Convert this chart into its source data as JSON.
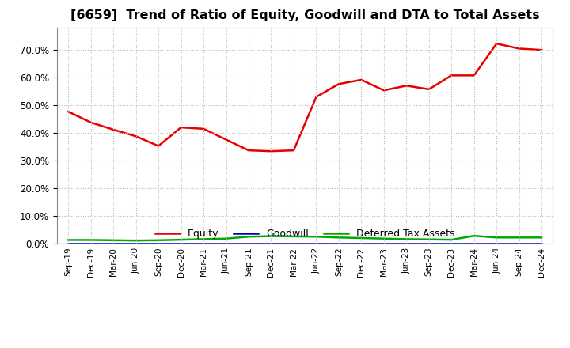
{
  "title": "[6659]  Trend of Ratio of Equity, Goodwill and DTA to Total Assets",
  "x_labels": [
    "Sep-19",
    "Dec-19",
    "Mar-20",
    "Jun-20",
    "Sep-20",
    "Dec-20",
    "Mar-21",
    "Jun-21",
    "Sep-21",
    "Dec-21",
    "Mar-22",
    "Jun-22",
    "Sep-22",
    "Dec-22",
    "Mar-23",
    "Jun-23",
    "Sep-23",
    "Dec-23",
    "Mar-24",
    "Jun-24",
    "Sep-24",
    "Dec-24"
  ],
  "equity": [
    0.477,
    0.438,
    0.412,
    0.388,
    0.353,
    0.42,
    0.415,
    0.376,
    0.337,
    0.334,
    0.337,
    0.53,
    0.577,
    0.592,
    0.554,
    0.571,
    0.558,
    0.608,
    0.608,
    0.723,
    0.705,
    0.7
  ],
  "goodwill": [
    0.0,
    0.0,
    0.0,
    0.0,
    0.0,
    0.0,
    0.0,
    0.0,
    0.0,
    0.0,
    0.0,
    0.0,
    0.0,
    0.0,
    0.0,
    0.0,
    0.0,
    0.0,
    0.0,
    0.0,
    0.0,
    0.0
  ],
  "dta": [
    0.013,
    0.013,
    0.012,
    0.011,
    0.012,
    0.014,
    0.016,
    0.018,
    0.025,
    0.027,
    0.026,
    0.025,
    0.022,
    0.02,
    0.018,
    0.016,
    0.015,
    0.014,
    0.028,
    0.022,
    0.022,
    0.022
  ],
  "equity_color": "#e80000",
  "goodwill_color": "#0000cc",
  "dta_color": "#00aa00",
  "background_color": "#ffffff",
  "grid_color": "#bbbbbb",
  "ylim": [
    0.0,
    0.78
  ],
  "yticks": [
    0.0,
    0.1,
    0.2,
    0.3,
    0.4,
    0.5,
    0.6,
    0.7
  ],
  "title_fontsize": 11.5,
  "legend_labels": [
    "Equity",
    "Goodwill",
    "Deferred Tax Assets"
  ]
}
